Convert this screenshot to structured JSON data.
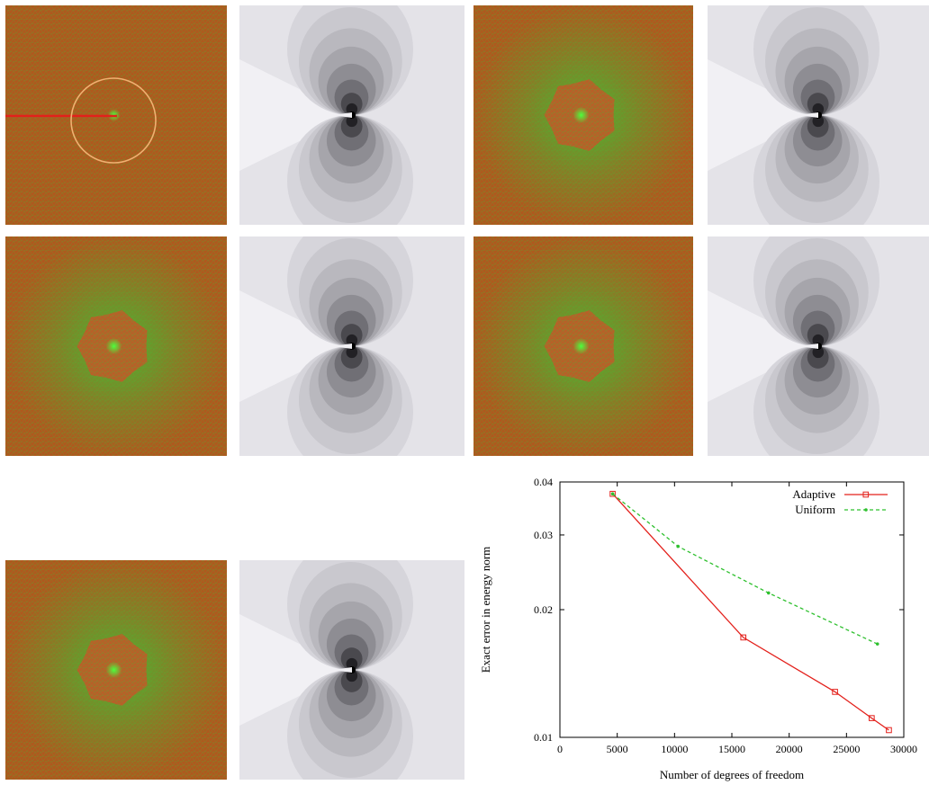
{
  "figure": {
    "rows": [
      {
        "panels": [
          {
            "name": "mesh-step-1",
            "kind": "mesh",
            "crack": true,
            "circle": true,
            "refined_zone": false,
            "hotspot": true
          },
          {
            "name": "field-step-1",
            "kind": "field"
          },
          {
            "name": "mesh-step-2",
            "kind": "mesh",
            "crack": false,
            "circle": false,
            "refined_zone": true,
            "hotspot": true
          },
          {
            "name": "field-step-2",
            "kind": "field"
          }
        ]
      },
      {
        "panels": [
          {
            "name": "mesh-step-3",
            "kind": "mesh",
            "refined_zone": true,
            "hotspot": true
          },
          {
            "name": "field-step-3",
            "kind": "field"
          },
          {
            "name": "mesh-step-4",
            "kind": "mesh",
            "refined_zone": true,
            "hotspot": true
          },
          {
            "name": "field-step-4",
            "kind": "field"
          }
        ]
      },
      {
        "panels": [
          {
            "name": "mesh-step-5",
            "kind": "mesh",
            "refined_zone": true,
            "hotspot": true
          },
          {
            "name": "field-step-5",
            "kind": "field"
          }
        ]
      }
    ],
    "colors": {
      "mesh_base": "#b0581e",
      "mesh_refined": "#3fc034",
      "crack": "#e3201b",
      "circle": "#f0b070",
      "field_light": "#f1f0f4",
      "field_dark": "#000000"
    }
  },
  "chart_data": {
    "type": "line",
    "title": "",
    "xlabel": "Number of degrees of freedom",
    "ylabel": "Exact error in energy norm",
    "xlim": [
      0,
      30000
    ],
    "ylim": [
      0.01,
      0.04
    ],
    "yscale": "log",
    "xticks": [
      0,
      5000,
      10000,
      15000,
      20000,
      25000,
      30000
    ],
    "xtick_labels": [
      "0",
      "5000",
      "10000",
      "15000",
      "20000",
      "25000",
      "30000"
    ],
    "yticks": [
      0.01,
      0.02,
      0.03,
      0.04
    ],
    "ytick_labels": [
      "0.01",
      "0.02",
      "0.03",
      "0.04"
    ],
    "legend_position": "top-right",
    "grid": false,
    "series": [
      {
        "name": "Adaptive",
        "color": "#e3201b",
        "style": "solid",
        "marker": "square",
        "x": [
          4600,
          16000,
          24000,
          27200,
          28700
        ],
        "y": [
          0.0375,
          0.0172,
          0.0128,
          0.0111,
          0.0104
        ]
      },
      {
        "name": "Uniform",
        "color": "#2ec02e",
        "style": "dashed",
        "marker": "dot",
        "x": [
          4600,
          10300,
          18200,
          27700
        ],
        "y": [
          0.0375,
          0.0282,
          0.0219,
          0.0166
        ]
      }
    ]
  }
}
